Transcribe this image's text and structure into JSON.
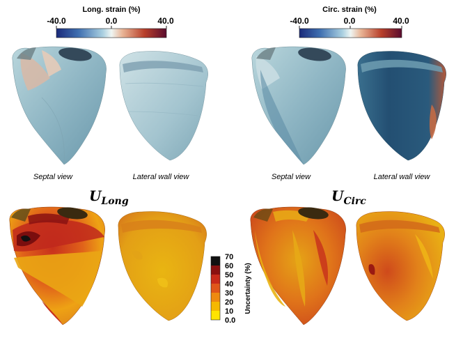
{
  "colorbars": {
    "long": {
      "title": "Long. strain (%)",
      "ticks": [
        "-40.0",
        "0.0",
        "40.0"
      ]
    },
    "circ": {
      "title": "Circ. strain (%)",
      "ticks": [
        "-40.0",
        "0.0",
        "40.0"
      ]
    },
    "uncertainty": {
      "title": "Uncertainty (%)",
      "ticks": [
        "70",
        "60",
        "50",
        "40",
        "30",
        "20",
        "10",
        "0.0"
      ]
    }
  },
  "views": {
    "long_septal": "Septal view",
    "long_lateral": "Lateral wall view",
    "circ_septal": "Septal view",
    "circ_lateral": "Lateral wall view"
  },
  "headings": {
    "u_long": {
      "main": "U",
      "sub": "Long"
    },
    "u_circ": {
      "main": "U",
      "sub": "Circ"
    }
  },
  "colors": {
    "strain_neg": "#1a2a7a",
    "strain_zero": "#e8f1f2",
    "strain_pos": "#6b0f2a",
    "uncert_scale": [
      "#ffe400",
      "#f5b800",
      "#ee8a10",
      "#e0561a",
      "#c82a1a",
      "#8a1010",
      "#111111"
    ]
  }
}
